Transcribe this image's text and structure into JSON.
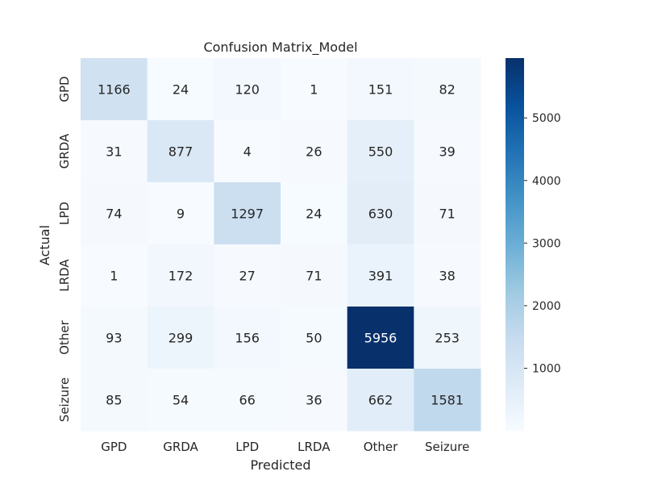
{
  "chart_data": {
    "type": "heatmap",
    "title": "Confusion Matrix_Model",
    "xlabel": "Predicted",
    "ylabel": "Actual",
    "x_categories": [
      "GPD",
      "GRDA",
      "LPD",
      "LRDA",
      "Other",
      "Seizure"
    ],
    "y_categories": [
      "GPD",
      "GRDA",
      "LPD",
      "LRDA",
      "Other",
      "Seizure"
    ],
    "values": [
      [
        1166,
        24,
        120,
        1,
        151,
        82
      ],
      [
        31,
        877,
        4,
        26,
        550,
        39
      ],
      [
        74,
        9,
        1297,
        24,
        630,
        71
      ],
      [
        1,
        172,
        27,
        71,
        391,
        38
      ],
      [
        93,
        299,
        156,
        50,
        5956,
        253
      ],
      [
        85,
        54,
        66,
        36,
        662,
        1581
      ]
    ],
    "colorbar": {
      "colormap": "Blues",
      "vmin": 1,
      "vmax": 5956,
      "ticks": [
        1000,
        2000,
        3000,
        4000,
        5000
      ]
    }
  }
}
